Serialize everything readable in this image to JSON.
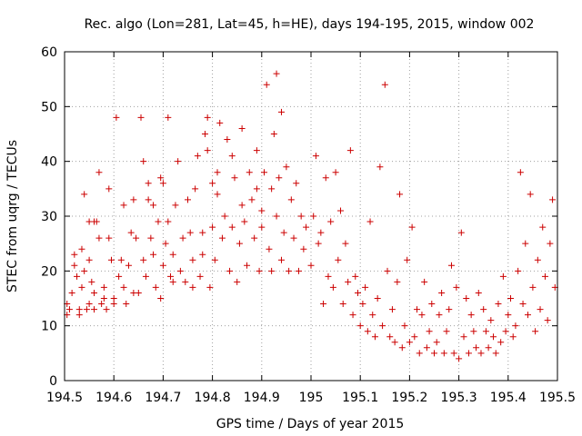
{
  "chart_data": {
    "type": "scatter",
    "title": "Rec. algo (Lon=281, Lat=45, h=HE), days 194-195, 2015, window 002",
    "xlabel": "GPS time / Days of year 2015",
    "ylabel": "STEC from uqrg / TECUs",
    "xlim": [
      194.5,
      195.5
    ],
    "ylim": [
      0,
      60
    ],
    "xticks": [
      "194.5",
      "194.6",
      "194.7",
      "194.8",
      "194.9",
      "195",
      "195.1",
      "195.2",
      "195.3",
      "195.4",
      "195.5"
    ],
    "yticks": [
      "0",
      "10",
      "20",
      "30",
      "40",
      "50",
      "60"
    ],
    "grid": true,
    "marker": "plus",
    "color": "#cc0000",
    "series": [
      {
        "points": [
          [
            194.505,
            12
          ],
          [
            194.505,
            14
          ],
          [
            194.51,
            13
          ],
          [
            194.515,
            16
          ],
          [
            194.52,
            21
          ],
          [
            194.52,
            23
          ],
          [
            194.525,
            19
          ],
          [
            194.53,
            13
          ],
          [
            194.53,
            12
          ],
          [
            194.535,
            17
          ],
          [
            194.535,
            24
          ],
          [
            194.54,
            34
          ],
          [
            194.54,
            20
          ],
          [
            194.545,
            13
          ],
          [
            194.55,
            14
          ],
          [
            194.55,
            29
          ],
          [
            194.55,
            22
          ],
          [
            194.555,
            18
          ],
          [
            194.56,
            16
          ],
          [
            194.56,
            13
          ],
          [
            194.56,
            29
          ],
          [
            194.565,
            29
          ],
          [
            194.57,
            38
          ],
          [
            194.57,
            26
          ],
          [
            194.575,
            14
          ],
          [
            194.58,
            15
          ],
          [
            194.58,
            17
          ],
          [
            194.585,
            13
          ],
          [
            194.59,
            35
          ],
          [
            194.59,
            26
          ],
          [
            194.595,
            22
          ],
          [
            194.6,
            14
          ],
          [
            194.6,
            15
          ],
          [
            194.605,
            48
          ],
          [
            194.61,
            19
          ],
          [
            194.615,
            22
          ],
          [
            194.62,
            17
          ],
          [
            194.62,
            32
          ],
          [
            194.625,
            14
          ],
          [
            194.63,
            21
          ],
          [
            194.635,
            27
          ],
          [
            194.64,
            16
          ],
          [
            194.64,
            33
          ],
          [
            194.645,
            26
          ],
          [
            194.65,
            16
          ],
          [
            194.655,
            48
          ],
          [
            194.66,
            40
          ],
          [
            194.66,
            22
          ],
          [
            194.665,
            19
          ],
          [
            194.67,
            36
          ],
          [
            194.67,
            33
          ],
          [
            194.675,
            26
          ],
          [
            194.68,
            32
          ],
          [
            194.68,
            23
          ],
          [
            194.685,
            17
          ],
          [
            194.69,
            29
          ],
          [
            194.695,
            37
          ],
          [
            194.695,
            15
          ],
          [
            194.7,
            21
          ],
          [
            194.7,
            36
          ],
          [
            194.705,
            25
          ],
          [
            194.71,
            48
          ],
          [
            194.71,
            29
          ],
          [
            194.715,
            19
          ],
          [
            194.72,
            23
          ],
          [
            194.72,
            18
          ],
          [
            194.725,
            32
          ],
          [
            194.73,
            40
          ],
          [
            194.735,
            20
          ],
          [
            194.74,
            26
          ],
          [
            194.745,
            18
          ],
          [
            194.75,
            33
          ],
          [
            194.755,
            27
          ],
          [
            194.76,
            17
          ],
          [
            194.76,
            22
          ],
          [
            194.765,
            35
          ],
          [
            194.77,
            41
          ],
          [
            194.775,
            19
          ],
          [
            194.78,
            23
          ],
          [
            194.78,
            27
          ],
          [
            194.785,
            45
          ],
          [
            194.79,
            48
          ],
          [
            194.79,
            42
          ],
          [
            194.795,
            17
          ],
          [
            194.8,
            36
          ],
          [
            194.8,
            28
          ],
          [
            194.805,
            22
          ],
          [
            194.81,
            38
          ],
          [
            194.81,
            34
          ],
          [
            194.815,
            47
          ],
          [
            194.82,
            26
          ],
          [
            194.825,
            30
          ],
          [
            194.83,
            44
          ],
          [
            194.835,
            20
          ],
          [
            194.84,
            41
          ],
          [
            194.84,
            28
          ],
          [
            194.845,
            37
          ],
          [
            194.85,
            18
          ],
          [
            194.855,
            25
          ],
          [
            194.86,
            46
          ],
          [
            194.86,
            32
          ],
          [
            194.865,
            29
          ],
          [
            194.87,
            21
          ],
          [
            194.875,
            38
          ],
          [
            194.88,
            33
          ],
          [
            194.885,
            26
          ],
          [
            194.89,
            42
          ],
          [
            194.89,
            35
          ],
          [
            194.895,
            20
          ],
          [
            194.9,
            31
          ],
          [
            194.9,
            28
          ],
          [
            194.905,
            38
          ],
          [
            194.91,
            54
          ],
          [
            194.915,
            24
          ],
          [
            194.92,
            35
          ],
          [
            194.92,
            20
          ],
          [
            194.925,
            45
          ],
          [
            194.93,
            56
          ],
          [
            194.93,
            30
          ],
          [
            194.935,
            37
          ],
          [
            194.94,
            49
          ],
          [
            194.94,
            22
          ],
          [
            194.945,
            27
          ],
          [
            194.95,
            39
          ],
          [
            194.955,
            20
          ],
          [
            194.96,
            33
          ],
          [
            194.965,
            26
          ],
          [
            194.97,
            36
          ],
          [
            194.975,
            20
          ],
          [
            194.98,
            30
          ],
          [
            194.985,
            24
          ],
          [
            194.99,
            28
          ],
          [
            195.0,
            21
          ],
          [
            195.005,
            30
          ],
          [
            195.01,
            41
          ],
          [
            195.015,
            25
          ],
          [
            195.02,
            27
          ],
          [
            195.025,
            14
          ],
          [
            195.03,
            37
          ],
          [
            195.035,
            19
          ],
          [
            195.04,
            29
          ],
          [
            195.045,
            17
          ],
          [
            195.05,
            38
          ],
          [
            195.055,
            22
          ],
          [
            195.06,
            31
          ],
          [
            195.065,
            14
          ],
          [
            195.07,
            25
          ],
          [
            195.075,
            18
          ],
          [
            195.08,
            42
          ],
          [
            195.085,
            12
          ],
          [
            195.09,
            19
          ],
          [
            195.095,
            16
          ],
          [
            195.1,
            10
          ],
          [
            195.105,
            14
          ],
          [
            195.11,
            17
          ],
          [
            195.115,
            9
          ],
          [
            195.12,
            29
          ],
          [
            195.125,
            12
          ],
          [
            195.13,
            8
          ],
          [
            195.135,
            15
          ],
          [
            195.14,
            39
          ],
          [
            195.145,
            10
          ],
          [
            195.15,
            54
          ],
          [
            195.155,
            20
          ],
          [
            195.16,
            8
          ],
          [
            195.165,
            13
          ],
          [
            195.17,
            7
          ],
          [
            195.175,
            18
          ],
          [
            195.18,
            34
          ],
          [
            195.185,
            6
          ],
          [
            195.19,
            10
          ],
          [
            195.195,
            22
          ],
          [
            195.2,
            7
          ],
          [
            195.205,
            28
          ],
          [
            195.21,
            8
          ],
          [
            195.215,
            13
          ],
          [
            195.22,
            5
          ],
          [
            195.225,
            12
          ],
          [
            195.23,
            18
          ],
          [
            195.235,
            6
          ],
          [
            195.24,
            9
          ],
          [
            195.245,
            14
          ],
          [
            195.25,
            5
          ],
          [
            195.255,
            7
          ],
          [
            195.26,
            12
          ],
          [
            195.265,
            16
          ],
          [
            195.27,
            5
          ],
          [
            195.275,
            9
          ],
          [
            195.28,
            13
          ],
          [
            195.285,
            21
          ],
          [
            195.29,
            5
          ],
          [
            195.295,
            17
          ],
          [
            195.3,
            4
          ],
          [
            195.305,
            27
          ],
          [
            195.31,
            8
          ],
          [
            195.315,
            15
          ],
          [
            195.32,
            5
          ],
          [
            195.325,
            12
          ],
          [
            195.33,
            9
          ],
          [
            195.335,
            6
          ],
          [
            195.34,
            16
          ],
          [
            195.345,
            5
          ],
          [
            195.35,
            13
          ],
          [
            195.355,
            9
          ],
          [
            195.36,
            6
          ],
          [
            195.365,
            11
          ],
          [
            195.37,
            8
          ],
          [
            195.375,
            5
          ],
          [
            195.38,
            14
          ],
          [
            195.385,
            7
          ],
          [
            195.39,
            19
          ],
          [
            195.395,
            9
          ],
          [
            195.4,
            12
          ],
          [
            195.405,
            15
          ],
          [
            195.41,
            8
          ],
          [
            195.415,
            10
          ],
          [
            195.42,
            20
          ],
          [
            195.425,
            38
          ],
          [
            195.43,
            14
          ],
          [
            195.435,
            25
          ],
          [
            195.44,
            12
          ],
          [
            195.445,
            34
          ],
          [
            195.45,
            17
          ],
          [
            195.455,
            9
          ],
          [
            195.46,
            22
          ],
          [
            195.465,
            13
          ],
          [
            195.47,
            28
          ],
          [
            195.475,
            19
          ],
          [
            195.48,
            11
          ],
          [
            195.485,
            25
          ],
          [
            195.49,
            33
          ],
          [
            195.495,
            17
          ]
        ]
      }
    ]
  }
}
